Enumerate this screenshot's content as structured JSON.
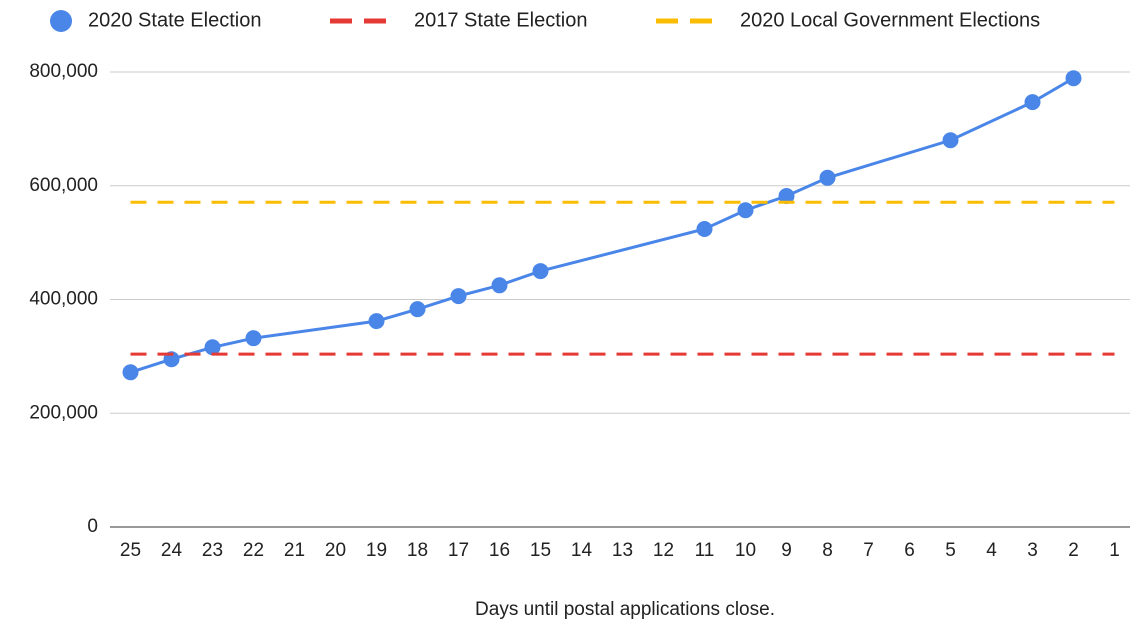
{
  "chart_data": {
    "type": "line",
    "x_label": "Days until postal applications close.",
    "xlim": [
      25.5,
      0.5
    ],
    "xticks": [
      25,
      24,
      23,
      22,
      21,
      20,
      19,
      18,
      17,
      16,
      15,
      14,
      13,
      12,
      11,
      10,
      9,
      8,
      7,
      6,
      5,
      4,
      3,
      2,
      1
    ],
    "ylim": [
      0,
      800000
    ],
    "yticks": [
      0,
      {
        "value": 200000,
        "label": "200,000"
      },
      {
        "value": 400000,
        "label": "400,000"
      },
      {
        "value": 600000,
        "label": "600,000"
      },
      {
        "value": 800000,
        "label": "800,000"
      }
    ],
    "grid": true,
    "legend": "top",
    "series": [
      {
        "name": "2020 State Election",
        "color": "#4a86e8",
        "style": "points",
        "x": [
          25,
          24,
          23,
          22,
          19,
          18,
          17,
          16,
          15,
          11,
          10,
          9,
          8,
          5,
          3,
          2
        ],
        "values": [
          272000,
          295000,
          316000,
          332000,
          362000,
          383000,
          406000,
          425000,
          450000,
          524000,
          557000,
          582000,
          614000,
          680000,
          747000,
          789000
        ]
      },
      {
        "name": "2017 State Election",
        "color": "#e53935",
        "style": "dashed",
        "x": [
          25,
          1
        ],
        "values": [
          304000,
          304000
        ]
      },
      {
        "name": "2020 Local Government Elections",
        "color": "#fbbc04",
        "style": "dashed",
        "x": [
          25,
          1
        ],
        "values": [
          571000,
          571000
        ]
      }
    ]
  }
}
